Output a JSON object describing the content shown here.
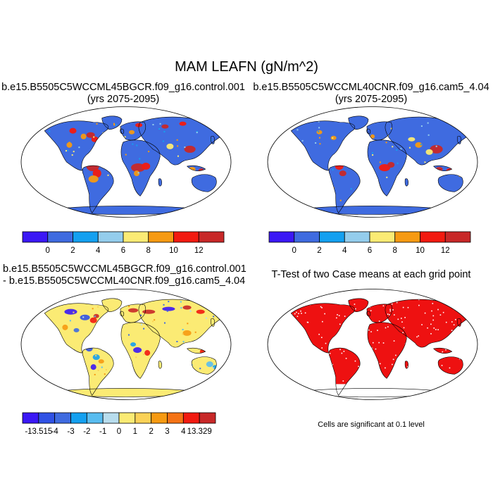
{
  "figure": {
    "title": "MAM LEAFN (gN/m^2)"
  },
  "panels": {
    "p1": {
      "title_line1": "b.e15.B5505C5WCCML45BGCR.f09_g16.control.001",
      "title_line2": "(yrs 2075-2095)"
    },
    "p2": {
      "title_line1": "b.e15.B5505C5WCCML40CNR.f09_g16.cam5_4.04",
      "title_line2": "(yrs 2075-2095)"
    },
    "p3": {
      "title_line1": "b.e15.B5505C5WCCML45BGCR.f09_g16.control.001",
      "title_line2": "- b.e15.B5505C5WCCML40CNR.f09_g16.cam5_4.04"
    },
    "p4": {
      "title_line1": "T-Test of two Case means at each grid point",
      "note": "Cells are significant at 0.1 level"
    }
  },
  "colorbars": {
    "abs": {
      "labels": [
        "0",
        "2",
        "4",
        "6",
        "8",
        "10",
        "12"
      ],
      "colors": [
        "#3b18f5",
        "#3f6be0",
        "#14a0f0",
        "#94cdec",
        "#fbeb74",
        "#f69a12",
        "#f21a10",
        "#c82828"
      ]
    },
    "diff": {
      "labels": [
        "-13.515",
        "-4",
        "-3",
        "-2",
        "-1",
        "0",
        "1",
        "2",
        "3",
        "4",
        "13.329"
      ],
      "colors": [
        "#3b18f5",
        "#3052e5",
        "#3f6be0",
        "#14a0f0",
        "#59bdf0",
        "#b8dded",
        "#fbeb74",
        "#fbd257",
        "#f69a12",
        "#f57315",
        "#f21a10",
        "#c82828"
      ]
    }
  },
  "colors": {
    "ocean": "#ffffff",
    "land_base": "#3f6be0",
    "diff_base": "#fbeb74",
    "signif": "#ee1111",
    "outline": "#000000"
  }
}
